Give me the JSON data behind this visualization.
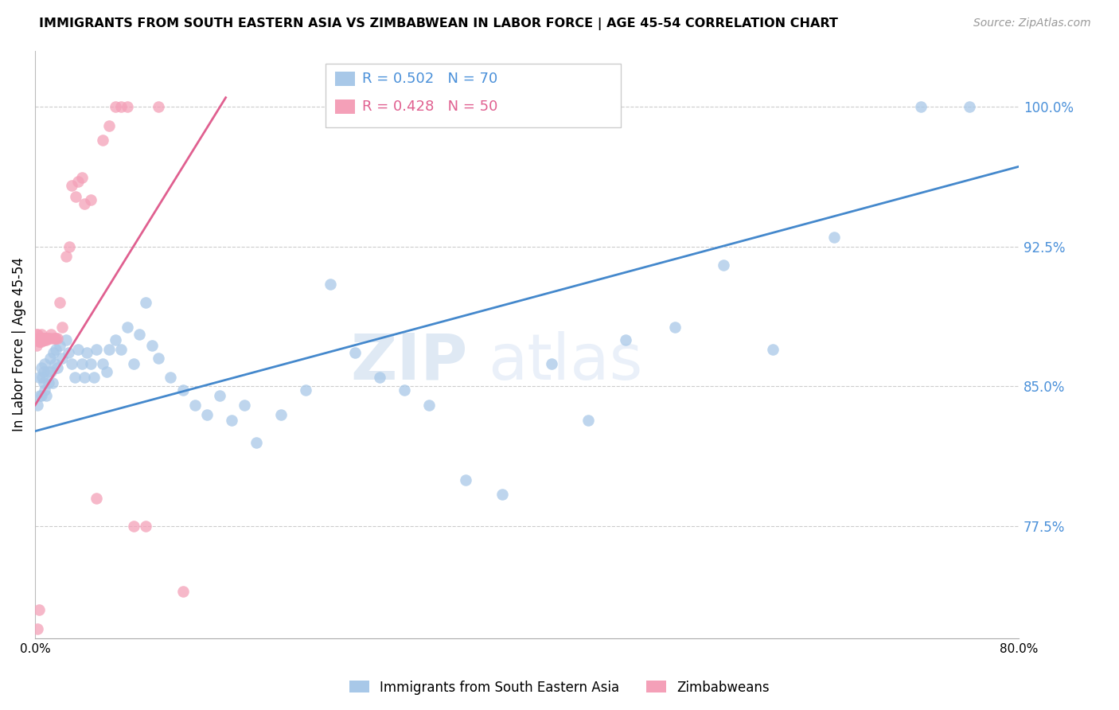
{
  "title": "IMMIGRANTS FROM SOUTH EASTERN ASIA VS ZIMBABWEAN IN LABOR FORCE | AGE 45-54 CORRELATION CHART",
  "source": "Source: ZipAtlas.com",
  "ylabel": "In Labor Force | Age 45-54",
  "x_min": 0.0,
  "x_max": 0.8,
  "y_min": 0.715,
  "y_max": 1.03,
  "yticks": [
    0.775,
    0.85,
    0.925,
    1.0
  ],
  "ytick_labels": [
    "77.5%",
    "85.0%",
    "92.5%",
    "100.0%"
  ],
  "xticks": [
    0.0,
    0.1,
    0.2,
    0.3,
    0.4,
    0.5,
    0.6,
    0.7,
    0.8
  ],
  "xtick_labels": [
    "0.0%",
    "",
    "",
    "",
    "",
    "",
    "",
    "",
    "80.0%"
  ],
  "blue_color": "#a8c8e8",
  "pink_color": "#f4a0b8",
  "blue_line_color": "#4488cc",
  "pink_line_color": "#e06090",
  "blue_r": 0.502,
  "blue_n": 70,
  "pink_r": 0.428,
  "pink_n": 50,
  "legend_blue": "Immigrants from South Eastern Asia",
  "legend_pink": "Zimbabweans",
  "watermark_zip": "ZIP",
  "watermark_atlas": "atlas",
  "blue_x": [
    0.002,
    0.003,
    0.004,
    0.005,
    0.005,
    0.006,
    0.007,
    0.007,
    0.008,
    0.008,
    0.009,
    0.01,
    0.011,
    0.012,
    0.013,
    0.014,
    0.015,
    0.016,
    0.017,
    0.018,
    0.02,
    0.022,
    0.025,
    0.027,
    0.03,
    0.032,
    0.035,
    0.038,
    0.04,
    0.042,
    0.045,
    0.048,
    0.05,
    0.055,
    0.058,
    0.06,
    0.065,
    0.07,
    0.075,
    0.08,
    0.085,
    0.09,
    0.095,
    0.1,
    0.11,
    0.12,
    0.13,
    0.14,
    0.15,
    0.16,
    0.17,
    0.18,
    0.2,
    0.22,
    0.24,
    0.26,
    0.28,
    0.3,
    0.32,
    0.35,
    0.38,
    0.42,
    0.45,
    0.48,
    0.52,
    0.56,
    0.6,
    0.65,
    0.72,
    0.76
  ],
  "blue_y": [
    0.84,
    0.855,
    0.845,
    0.86,
    0.845,
    0.855,
    0.858,
    0.852,
    0.848,
    0.862,
    0.845,
    0.858,
    0.852,
    0.865,
    0.858,
    0.852,
    0.868,
    0.862,
    0.87,
    0.86,
    0.872,
    0.865,
    0.875,
    0.868,
    0.862,
    0.855,
    0.87,
    0.862,
    0.855,
    0.868,
    0.862,
    0.855,
    0.87,
    0.862,
    0.858,
    0.87,
    0.875,
    0.87,
    0.882,
    0.862,
    0.878,
    0.895,
    0.872,
    0.865,
    0.855,
    0.848,
    0.84,
    0.835,
    0.845,
    0.832,
    0.84,
    0.82,
    0.835,
    0.848,
    0.905,
    0.868,
    0.855,
    0.848,
    0.84,
    0.8,
    0.792,
    0.862,
    0.832,
    0.875,
    0.882,
    0.915,
    0.87,
    0.93,
    1.0,
    1.0
  ],
  "pink_x": [
    0.001,
    0.001,
    0.001,
    0.002,
    0.002,
    0.003,
    0.003,
    0.004,
    0.004,
    0.005,
    0.005,
    0.005,
    0.006,
    0.006,
    0.007,
    0.007,
    0.008,
    0.008,
    0.009,
    0.009,
    0.01,
    0.011,
    0.012,
    0.013,
    0.015,
    0.016,
    0.017,
    0.018,
    0.02,
    0.022,
    0.025,
    0.028,
    0.03,
    0.033,
    0.035,
    0.038,
    0.04,
    0.045,
    0.05,
    0.055,
    0.06,
    0.065,
    0.07,
    0.075,
    0.08,
    0.09,
    0.1,
    0.12,
    0.002,
    0.003
  ],
  "pink_y": [
    0.878,
    0.875,
    0.872,
    0.878,
    0.875,
    0.876,
    0.874,
    0.876,
    0.874,
    0.878,
    0.876,
    0.874,
    0.875,
    0.876,
    0.876,
    0.875,
    0.876,
    0.875,
    0.876,
    0.875,
    0.876,
    0.876,
    0.876,
    0.878,
    0.876,
    0.876,
    0.876,
    0.876,
    0.895,
    0.882,
    0.92,
    0.925,
    0.958,
    0.952,
    0.96,
    0.962,
    0.948,
    0.95,
    0.79,
    0.982,
    0.99,
    1.0,
    1.0,
    1.0,
    0.775,
    0.775,
    1.0,
    0.74,
    0.72,
    0.73
  ],
  "blue_trend_x": [
    0.0,
    0.8
  ],
  "blue_trend_y": [
    0.826,
    0.968
  ],
  "pink_trend_x": [
    0.0,
    0.155
  ],
  "pink_trend_y": [
    0.84,
    1.005
  ]
}
